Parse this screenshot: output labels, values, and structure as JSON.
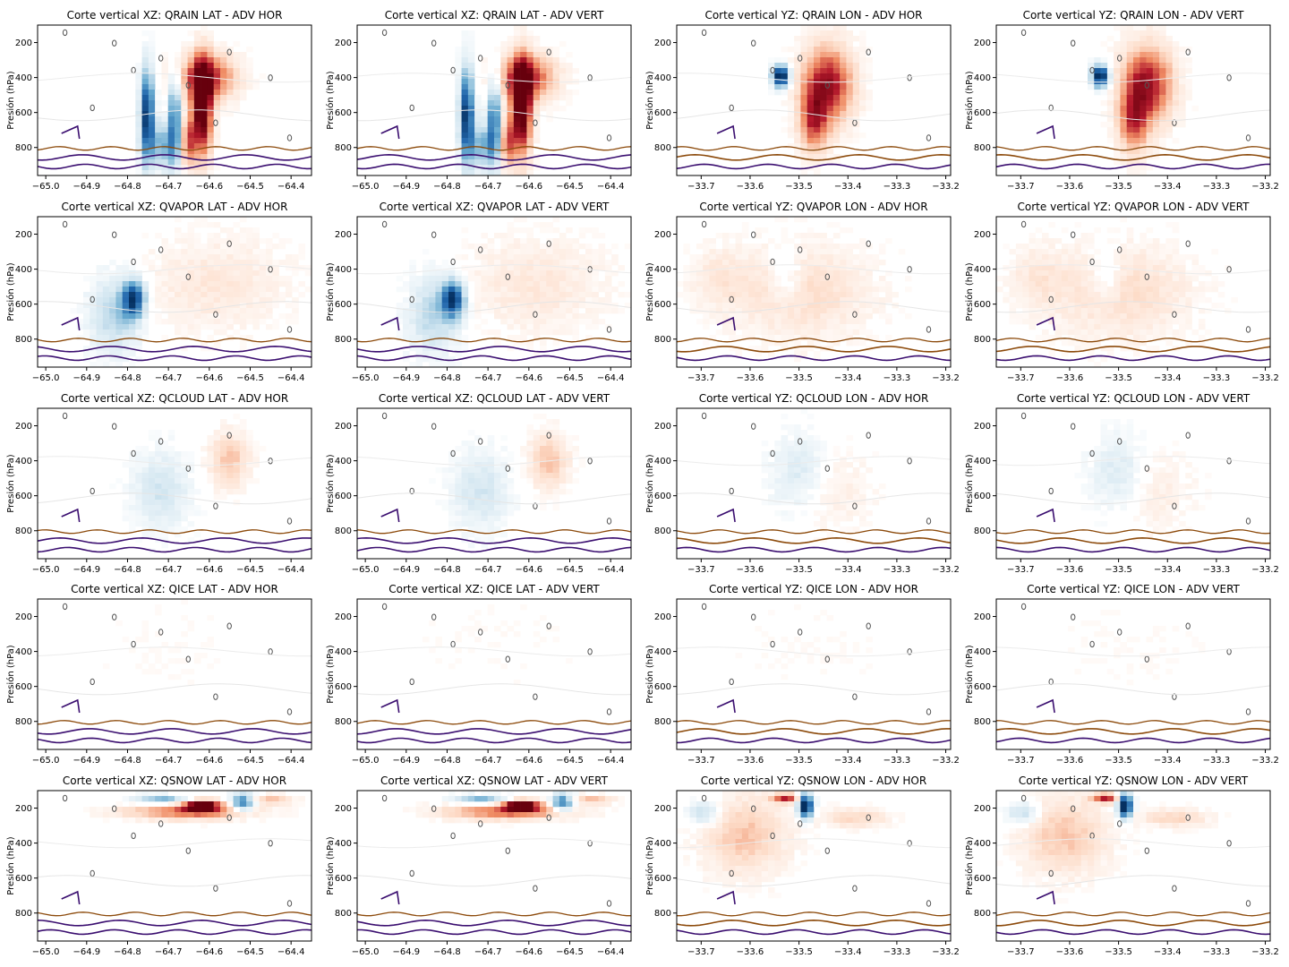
{
  "figure": {
    "colors": {
      "negative": "#2166ac",
      "positive": "#b2182b",
      "contour_dark": "#3b0f70",
      "contour_brown": "#8c4a0b",
      "contour_gray": "#555555"
    }
  },
  "chart_data": [
    {
      "type": "heatmap",
      "title": "Corte vertical XZ: QRAIN LAT - ADV HOR",
      "ylabel": "Presión (hPa)",
      "xticks": [
        "-65.0",
        "-64.9",
        "-64.8",
        "-64.7",
        "-64.6",
        "-64.5",
        "-64.4"
      ],
      "yticks": [
        "200",
        "400",
        "600",
        "800"
      ],
      "xlim": [
        -65.02,
        -64.35
      ],
      "ylim": [
        960,
        100
      ],
      "pattern": "rain"
    },
    {
      "type": "heatmap",
      "title": "Corte vertical XZ: QRAIN LAT - ADV VERT",
      "ylabel": "Presión (hPa)",
      "xticks": [
        "-65.0",
        "-64.9",
        "-64.8",
        "-64.7",
        "-64.6",
        "-64.5",
        "-64.4"
      ],
      "yticks": [
        "200",
        "400",
        "600",
        "800"
      ],
      "xlim": [
        -65.02,
        -64.35
      ],
      "ylim": [
        960,
        100
      ],
      "pattern": "rain"
    },
    {
      "type": "heatmap",
      "title": "Corte vertical YZ: QRAIN LON - ADV HOR",
      "ylabel": "Presión (hPa)",
      "xticks": [
        "-33.7",
        "-33.6",
        "-33.5",
        "-33.4",
        "-33.3",
        "-33.2"
      ],
      "yticks": [
        "200",
        "400",
        "600",
        "800"
      ],
      "xlim": [
        -33.75,
        -33.19
      ],
      "ylim": [
        960,
        100
      ],
      "pattern": "rain_yz"
    },
    {
      "type": "heatmap",
      "title": "Corte vertical YZ: QRAIN LON - ADV VERT",
      "ylabel": "Presión (hPa)",
      "xticks": [
        "-33.7",
        "-33.6",
        "-33.5",
        "-33.4",
        "-33.3",
        "-33.2"
      ],
      "yticks": [
        "200",
        "400",
        "600",
        "800"
      ],
      "xlim": [
        -33.75,
        -33.19
      ],
      "ylim": [
        960,
        100
      ],
      "pattern": "rain_yz"
    },
    {
      "type": "heatmap",
      "title": "Corte vertical XZ: QVAPOR LAT - ADV HOR",
      "ylabel": "Presión (hPa)",
      "xticks": [
        "-65.0",
        "-64.9",
        "-64.8",
        "-64.7",
        "-64.6",
        "-64.5",
        "-64.4"
      ],
      "yticks": [
        "200",
        "400",
        "600",
        "800"
      ],
      "xlim": [
        -65.02,
        -64.35
      ],
      "ylim": [
        960,
        100
      ],
      "pattern": "vapor"
    },
    {
      "type": "heatmap",
      "title": "Corte vertical XZ: QVAPOR LAT - ADV VERT",
      "ylabel": "Presión (hPa)",
      "xticks": [
        "-65.0",
        "-64.9",
        "-64.8",
        "-64.7",
        "-64.6",
        "-64.5",
        "-64.4"
      ],
      "yticks": [
        "200",
        "400",
        "600",
        "800"
      ],
      "xlim": [
        -65.02,
        -64.35
      ],
      "ylim": [
        960,
        100
      ],
      "pattern": "vapor"
    },
    {
      "type": "heatmap",
      "title": "Corte vertical YZ: QVAPOR LON - ADV HOR",
      "ylabel": "Presión (hPa)",
      "xticks": [
        "-33.7",
        "-33.6",
        "-33.5",
        "-33.4",
        "-33.3",
        "-33.2"
      ],
      "yticks": [
        "200",
        "400",
        "600",
        "800"
      ],
      "xlim": [
        -33.75,
        -33.19
      ],
      "ylim": [
        960,
        100
      ],
      "pattern": "vapor_yz"
    },
    {
      "type": "heatmap",
      "title": "Corte vertical YZ: QVAPOR LON - ADV VERT",
      "ylabel": "Presión (hPa)",
      "xticks": [
        "-33.7",
        "-33.6",
        "-33.5",
        "-33.4",
        "-33.3",
        "-33.2"
      ],
      "yticks": [
        "200",
        "400",
        "600",
        "800"
      ],
      "xlim": [
        -33.75,
        -33.19
      ],
      "ylim": [
        960,
        100
      ],
      "pattern": "vapor_yz"
    },
    {
      "type": "heatmap",
      "title": "Corte vertical XZ: QCLOUD LAT - ADV HOR",
      "ylabel": "Presión (hPa)",
      "xticks": [
        "-65.0",
        "-64.9",
        "-64.8",
        "-64.7",
        "-64.6",
        "-64.5",
        "-64.4"
      ],
      "yticks": [
        "200",
        "400",
        "600",
        "800"
      ],
      "xlim": [
        -65.02,
        -64.35
      ],
      "ylim": [
        960,
        100
      ],
      "pattern": "cloud"
    },
    {
      "type": "heatmap",
      "title": "Corte vertical XZ: QCLOUD LAT - ADV VERT",
      "ylabel": "Presión (hPa)",
      "xticks": [
        "-65.0",
        "-64.9",
        "-64.8",
        "-64.7",
        "-64.6",
        "-64.5",
        "-64.4"
      ],
      "yticks": [
        "200",
        "400",
        "600",
        "800"
      ],
      "xlim": [
        -65.02,
        -64.35
      ],
      "ylim": [
        960,
        100
      ],
      "pattern": "cloud"
    },
    {
      "type": "heatmap",
      "title": "Corte vertical YZ: QCLOUD LON - ADV HOR",
      "ylabel": "Presión (hPa)",
      "xticks": [
        "-33.7",
        "-33.6",
        "-33.5",
        "-33.4",
        "-33.3",
        "-33.2"
      ],
      "yticks": [
        "200",
        "400",
        "600",
        "800"
      ],
      "xlim": [
        -33.75,
        -33.19
      ],
      "ylim": [
        960,
        100
      ],
      "pattern": "cloud_yz"
    },
    {
      "type": "heatmap",
      "title": "Corte vertical YZ: QCLOUD LON - ADV VERT",
      "ylabel": "Presión (hPa)",
      "xticks": [
        "-33.7",
        "-33.6",
        "-33.5",
        "-33.4",
        "-33.3",
        "-33.2"
      ],
      "yticks": [
        "200",
        "400",
        "600",
        "800"
      ],
      "xlim": [
        -33.75,
        -33.19
      ],
      "ylim": [
        960,
        100
      ],
      "pattern": "cloud_yz"
    },
    {
      "type": "heatmap",
      "title": "Corte vertical XZ: QICE LAT - ADV HOR",
      "ylabel": "Presión (hPa)",
      "xticks": [
        "-65.0",
        "-64.9",
        "-64.8",
        "-64.7",
        "-64.6",
        "-64.5",
        "-64.4"
      ],
      "yticks": [
        "200",
        "400",
        "600",
        "800"
      ],
      "xlim": [
        -65.02,
        -64.35
      ],
      "ylim": [
        960,
        100
      ],
      "pattern": "ice"
    },
    {
      "type": "heatmap",
      "title": "Corte vertical XZ: QICE LAT - ADV VERT",
      "ylabel": "Presión (hPa)",
      "xticks": [
        "-65.0",
        "-64.9",
        "-64.8",
        "-64.7",
        "-64.6",
        "-64.5",
        "-64.4"
      ],
      "yticks": [
        "200",
        "400",
        "600",
        "800"
      ],
      "xlim": [
        -65.02,
        -64.35
      ],
      "ylim": [
        960,
        100
      ],
      "pattern": "ice"
    },
    {
      "type": "heatmap",
      "title": "Corte vertical YZ: QICE LON - ADV HOR",
      "ylabel": "Presión (hPa)",
      "xticks": [
        "-33.7",
        "-33.6",
        "-33.5",
        "-33.4",
        "-33.3",
        "-33.2"
      ],
      "yticks": [
        "200",
        "400",
        "600",
        "800"
      ],
      "xlim": [
        -33.75,
        -33.19
      ],
      "ylim": [
        960,
        100
      ],
      "pattern": "ice"
    },
    {
      "type": "heatmap",
      "title": "Corte vertical YZ: QICE LON - ADV VERT",
      "ylabel": "Presión (hPa)",
      "xticks": [
        "-33.7",
        "-33.6",
        "-33.5",
        "-33.4",
        "-33.3",
        "-33.2"
      ],
      "yticks": [
        "200",
        "400",
        "600",
        "800"
      ],
      "xlim": [
        -33.75,
        -33.19
      ],
      "ylim": [
        960,
        100
      ],
      "pattern": "ice"
    },
    {
      "type": "heatmap",
      "title": "Corte vertical XZ: QSNOW LAT - ADV HOR",
      "ylabel": "Presión (hPa)",
      "xticks": [
        "-65.0",
        "-64.9",
        "-64.8",
        "-64.7",
        "-64.6",
        "-64.5",
        "-64.4"
      ],
      "yticks": [
        "200",
        "400",
        "600",
        "800"
      ],
      "xlim": [
        -65.02,
        -64.35
      ],
      "ylim": [
        960,
        100
      ],
      "pattern": "snow"
    },
    {
      "type": "heatmap",
      "title": "Corte vertical XZ: QSNOW LAT - ADV VERT",
      "ylabel": "Presión (hPa)",
      "xticks": [
        "-65.0",
        "-64.9",
        "-64.8",
        "-64.7",
        "-64.6",
        "-64.5",
        "-64.4"
      ],
      "yticks": [
        "200",
        "400",
        "600",
        "800"
      ],
      "xlim": [
        -65.02,
        -64.35
      ],
      "ylim": [
        960,
        100
      ],
      "pattern": "snow"
    },
    {
      "type": "heatmap",
      "title": "Corte vertical YZ: QSNOW LON - ADV HOR",
      "ylabel": "Presión (hPa)",
      "xticks": [
        "-33.7",
        "-33.6",
        "-33.5",
        "-33.4",
        "-33.3",
        "-33.2"
      ],
      "yticks": [
        "200",
        "400",
        "600",
        "800"
      ],
      "xlim": [
        -33.75,
        -33.19
      ],
      "ylim": [
        960,
        100
      ],
      "pattern": "snow_yz"
    },
    {
      "type": "heatmap",
      "title": "Corte vertical YZ: QSNOW LON - ADV VERT",
      "ylabel": "Presión (hPa)",
      "xticks": [
        "-33.7",
        "-33.6",
        "-33.5",
        "-33.4",
        "-33.3",
        "-33.2"
      ],
      "yticks": [
        "200",
        "400",
        "600",
        "800"
      ],
      "xlim": [
        -33.75,
        -33.19
      ],
      "ylim": [
        960,
        100
      ],
      "pattern": "snow_yz"
    }
  ]
}
